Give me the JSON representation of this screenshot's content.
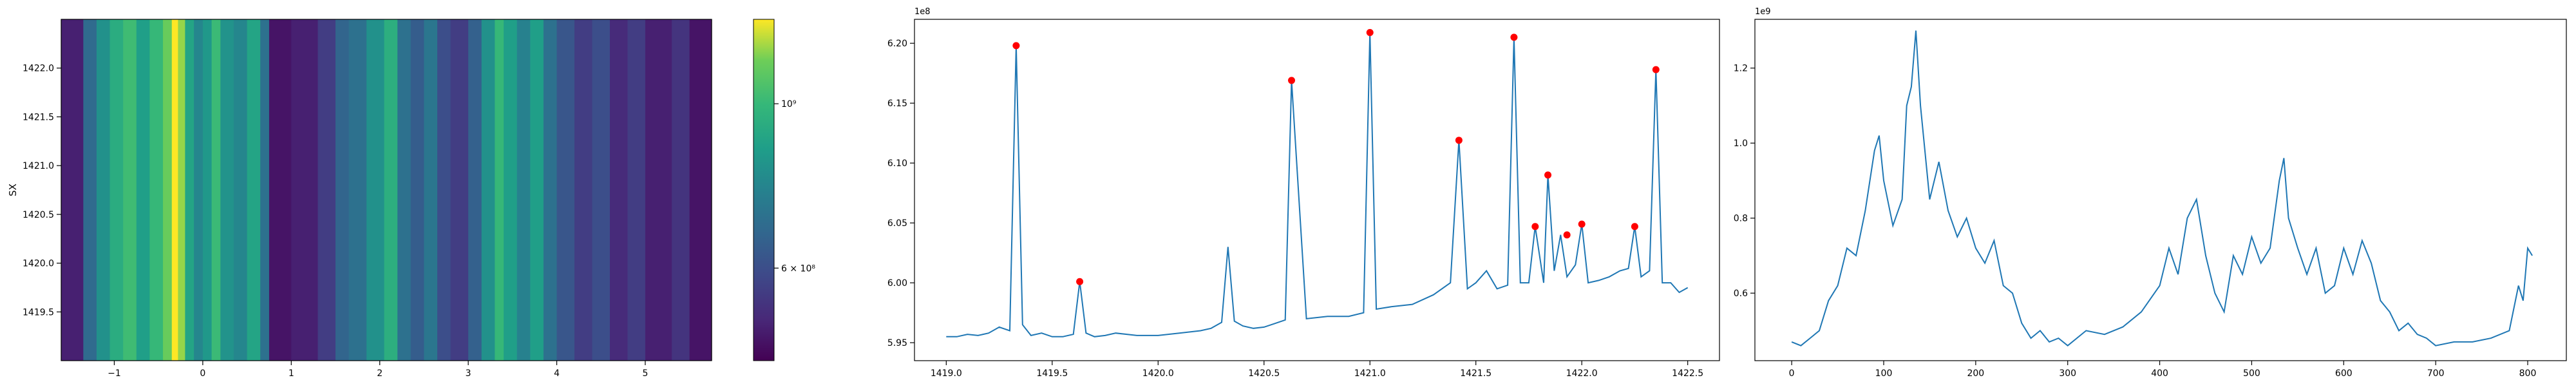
{
  "chart_data": [
    {
      "type": "heatmap",
      "title": "",
      "xlabel": "",
      "ylabel": "SX",
      "xlim": [
        -1.6,
        5.75
      ],
      "ylim": [
        1419.0,
        1422.5
      ],
      "x_ticks": [
        -1,
        0,
        1,
        2,
        3,
        4,
        5
      ],
      "x_tick_labels": [
        "−1",
        "0",
        "1",
        "2",
        "3",
        "4",
        "5"
      ],
      "y_ticks": [
        1419.5,
        1420.0,
        1420.5,
        1421.0,
        1421.5,
        1422.0
      ],
      "y_tick_labels": [
        "1419.5",
        "1420.0",
        "1420.5",
        "1421.0",
        "1421.5",
        "1422.0"
      ],
      "colormap": "viridis",
      "colorbar": {
        "scale": "log",
        "ticks": [
          600000000,
          1000000000
        ],
        "tick_labels": [
          "6 × 10⁸",
          "10⁹"
        ],
        "range": [
          450000000,
          1300000000
        ]
      },
      "columns": [
        {
          "x0": -1.6,
          "x1": -1.35,
          "value": 500000000
        },
        {
          "x0": -1.35,
          "x1": -1.2,
          "value": 680000000
        },
        {
          "x0": -1.2,
          "x1": -1.05,
          "value": 820000000
        },
        {
          "x0": -1.05,
          "x1": -0.9,
          "value": 940000000
        },
        {
          "x0": -0.9,
          "x1": -0.75,
          "value": 1020000000
        },
        {
          "x0": -0.75,
          "x1": -0.6,
          "value": 880000000
        },
        {
          "x0": -0.6,
          "x1": -0.45,
          "value": 1000000000
        },
        {
          "x0": -0.45,
          "x1": -0.35,
          "value": 1120000000
        },
        {
          "x0": -0.35,
          "x1": -0.28,
          "value": 1300000000
        },
        {
          "x0": -0.28,
          "x1": -0.2,
          "value": 1180000000
        },
        {
          "x0": -0.2,
          "x1": -0.1,
          "value": 900000000
        },
        {
          "x0": -0.1,
          "x1": 0.0,
          "value": 780000000
        },
        {
          "x0": 0.0,
          "x1": 0.1,
          "value": 850000000
        },
        {
          "x0": 0.1,
          "x1": 0.2,
          "value": 1010000000
        },
        {
          "x0": 0.2,
          "x1": 0.35,
          "value": 830000000
        },
        {
          "x0": 0.35,
          "x1": 0.5,
          "value": 780000000
        },
        {
          "x0": 0.5,
          "x1": 0.65,
          "value": 900000000
        },
        {
          "x0": 0.65,
          "x1": 0.75,
          "value": 700000000
        },
        {
          "x0": 0.75,
          "x1": 1.0,
          "value": 480000000
        },
        {
          "x0": 1.0,
          "x1": 1.3,
          "value": 500000000
        },
        {
          "x0": 1.3,
          "x1": 1.5,
          "value": 560000000
        },
        {
          "x0": 1.5,
          "x1": 1.65,
          "value": 660000000
        },
        {
          "x0": 1.65,
          "x1": 1.85,
          "value": 700000000
        },
        {
          "x0": 1.85,
          "x1": 2.05,
          "value": 820000000
        },
        {
          "x0": 2.05,
          "x1": 2.2,
          "value": 950000000
        },
        {
          "x0": 2.2,
          "x1": 2.35,
          "value": 700000000
        },
        {
          "x0": 2.35,
          "x1": 2.5,
          "value": 640000000
        },
        {
          "x0": 2.5,
          "x1": 2.65,
          "value": 720000000
        },
        {
          "x0": 2.65,
          "x1": 2.8,
          "value": 600000000
        },
        {
          "x0": 2.8,
          "x1": 3.0,
          "value": 560000000
        },
        {
          "x0": 3.0,
          "x1": 3.15,
          "value": 650000000
        },
        {
          "x0": 3.15,
          "x1": 3.3,
          "value": 820000000
        },
        {
          "x0": 3.3,
          "x1": 3.4,
          "value": 1000000000
        },
        {
          "x0": 3.4,
          "x1": 3.55,
          "value": 880000000
        },
        {
          "x0": 3.55,
          "x1": 3.7,
          "value": 760000000
        },
        {
          "x0": 3.7,
          "x1": 3.85,
          "value": 880000000
        },
        {
          "x0": 3.85,
          "x1": 4.0,
          "value": 700000000
        },
        {
          "x0": 4.0,
          "x1": 4.2,
          "value": 620000000
        },
        {
          "x0": 4.2,
          "x1": 4.4,
          "value": 560000000
        },
        {
          "x0": 4.4,
          "x1": 4.6,
          "value": 600000000
        },
        {
          "x0": 4.6,
          "x1": 4.8,
          "value": 520000000
        },
        {
          "x0": 4.8,
          "x1": 5.0,
          "value": 560000000
        },
        {
          "x0": 5.0,
          "x1": 5.3,
          "value": 500000000
        },
        {
          "x0": 5.3,
          "x1": 5.5,
          "value": 540000000
        },
        {
          "x0": 5.5,
          "x1": 5.75,
          "value": 480000000
        }
      ]
    },
    {
      "type": "line",
      "title": "",
      "xlabel": "",
      "ylabel": "",
      "offset_label": "1e8",
      "xlim": [
        1418.85,
        1422.65
      ],
      "ylim": [
        5.935,
        6.22
      ],
      "x_ticks": [
        1419.0,
        1419.5,
        1420.0,
        1420.5,
        1421.0,
        1421.5,
        1422.0,
        1422.5
      ],
      "x_tick_labels": [
        "1419.0",
        "1419.5",
        "1420.0",
        "1420.5",
        "1421.0",
        "1421.5",
        "1422.0",
        "1422.5"
      ],
      "y_ticks": [
        5.95,
        6.0,
        6.05,
        6.1,
        6.15,
        6.2
      ],
      "y_tick_labels": [
        "5.95",
        "6.00",
        "6.05",
        "6.10",
        "6.15",
        "6.20"
      ],
      "line_color": "#1f77b4",
      "marker_color": "#ff0000",
      "x": [
        1419.0,
        1419.05,
        1419.1,
        1419.15,
        1419.2,
        1419.25,
        1419.3,
        1419.33,
        1419.36,
        1419.4,
        1419.45,
        1419.5,
        1419.55,
        1419.6,
        1419.63,
        1419.66,
        1419.7,
        1419.75,
        1419.8,
        1419.9,
        1420.0,
        1420.1,
        1420.2,
        1420.25,
        1420.3,
        1420.33,
        1420.36,
        1420.4,
        1420.45,
        1420.5,
        1420.55,
        1420.6,
        1420.63,
        1420.7,
        1420.8,
        1420.9,
        1420.97,
        1421.0,
        1421.03,
        1421.1,
        1421.2,
        1421.3,
        1421.38,
        1421.42,
        1421.46,
        1421.5,
        1421.55,
        1421.6,
        1421.65,
        1421.68,
        1421.71,
        1421.75,
        1421.78,
        1421.82,
        1421.84,
        1421.87,
        1421.9,
        1421.93,
        1421.97,
        1422.0,
        1422.03,
        1422.08,
        1422.13,
        1422.18,
        1422.22,
        1422.25,
        1422.28,
        1422.32,
        1422.35,
        1422.38,
        1422.42,
        1422.46,
        1422.5
      ],
      "y": [
        5.955,
        5.955,
        5.957,
        5.956,
        5.958,
        5.963,
        5.96,
        6.198,
        5.965,
        5.956,
        5.958,
        5.955,
        5.955,
        5.957,
        6.001,
        5.958,
        5.955,
        5.956,
        5.958,
        5.956,
        5.956,
        5.958,
        5.96,
        5.962,
        5.967,
        6.03,
        5.968,
        5.964,
        5.962,
        5.963,
        5.966,
        5.969,
        6.169,
        5.97,
        5.972,
        5.972,
        5.975,
        6.209,
        5.978,
        5.98,
        5.982,
        5.99,
        6.0,
        6.119,
        5.995,
        6.0,
        6.01,
        5.995,
        5.998,
        6.205,
        6.0,
        6.0,
        6.047,
        6.0,
        6.09,
        6.01,
        6.04,
        6.005,
        6.015,
        6.049,
        6.0,
        6.002,
        6.005,
        6.01,
        6.012,
        6.047,
        6.005,
        6.01,
        6.178,
        6.0,
        6.0,
        5.992,
        5.996
      ],
      "peaks_x": [
        1419.33,
        1419.63,
        1420.63,
        1421.0,
        1421.42,
        1421.68,
        1421.78,
        1421.84,
        1421.93,
        1422.0,
        1422.25,
        1422.35
      ],
      "peaks_y": [
        6.198,
        6.001,
        6.169,
        6.209,
        6.119,
        6.205,
        6.047,
        6.09,
        6.04,
        6.049,
        6.047,
        6.178
      ]
    },
    {
      "type": "line",
      "title": "",
      "xlabel": "",
      "ylabel": "",
      "offset_label": "1e9",
      "xlim": [
        -40,
        842
      ],
      "ylim": [
        0.42,
        1.33
      ],
      "x_ticks": [
        0,
        100,
        200,
        300,
        400,
        500,
        600,
        700,
        800
      ],
      "x_tick_labels": [
        "0",
        "100",
        "200",
        "300",
        "400",
        "500",
        "600",
        "700",
        "800"
      ],
      "y_ticks": [
        0.6,
        0.8,
        1.0,
        1.2
      ],
      "y_tick_labels": [
        "0.6",
        "0.8",
        "1.0",
        "1.2"
      ],
      "line_color": "#1f77b4",
      "x": [
        0,
        10,
        20,
        30,
        40,
        50,
        60,
        70,
        80,
        90,
        95,
        100,
        110,
        120,
        125,
        130,
        135,
        140,
        150,
        160,
        170,
        180,
        190,
        200,
        210,
        220,
        230,
        240,
        250,
        260,
        270,
        280,
        290,
        300,
        320,
        340,
        360,
        380,
        400,
        410,
        420,
        430,
        440,
        450,
        460,
        470,
        480,
        490,
        500,
        510,
        520,
        530,
        535,
        540,
        550,
        560,
        570,
        580,
        590,
        600,
        610,
        620,
        630,
        640,
        650,
        660,
        670,
        680,
        690,
        700,
        720,
        740,
        760,
        780,
        790,
        795,
        800,
        805
      ],
      "y": [
        0.47,
        0.46,
        0.48,
        0.5,
        0.58,
        0.62,
        0.72,
        0.7,
        0.82,
        0.98,
        1.02,
        0.9,
        0.78,
        0.85,
        1.1,
        1.15,
        1.3,
        1.1,
        0.85,
        0.95,
        0.82,
        0.75,
        0.8,
        0.72,
        0.68,
        0.74,
        0.62,
        0.6,
        0.52,
        0.48,
        0.5,
        0.47,
        0.48,
        0.46,
        0.5,
        0.49,
        0.51,
        0.55,
        0.62,
        0.72,
        0.65,
        0.8,
        0.85,
        0.7,
        0.6,
        0.55,
        0.7,
        0.65,
        0.75,
        0.68,
        0.72,
        0.9,
        0.96,
        0.8,
        0.72,
        0.65,
        0.72,
        0.6,
        0.62,
        0.72,
        0.65,
        0.74,
        0.68,
        0.58,
        0.55,
        0.5,
        0.52,
        0.49,
        0.48,
        0.46,
        0.47,
        0.47,
        0.48,
        0.5,
        0.62,
        0.58,
        0.72,
        0.7
      ]
    }
  ]
}
